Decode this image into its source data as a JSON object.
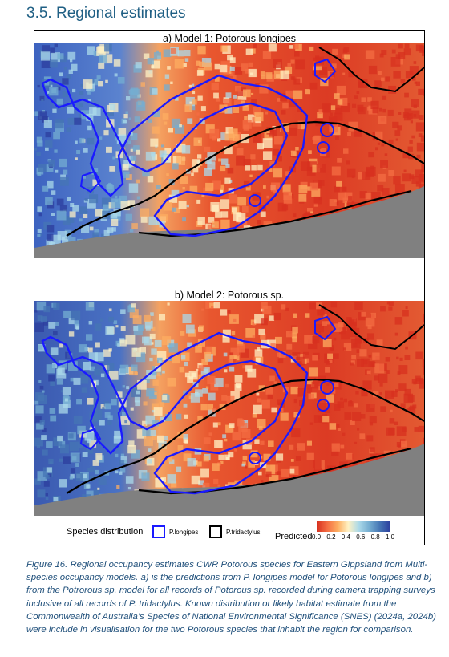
{
  "section": {
    "heading": "3.5.   Regional estimates"
  },
  "panels": [
    {
      "title": "a) Model 1: Potorous longipes"
    },
    {
      "title": "b) Model 2: Potorous sp."
    }
  ],
  "legend": {
    "species_title": "Species distribution",
    "longipes_label": "P.longipes",
    "tridactylus_label": "P.tridactylus",
    "predicted_title": "Predicted",
    "ticks": [
      "0.0",
      "0.2",
      "0.4",
      "0.6",
      "0.8",
      "1.0"
    ],
    "colors": {
      "longipes": "#1a1aff",
      "tridactylus": "#000000",
      "low": "#d7301f",
      "mid": "#fff2c4",
      "high": "#2c3e9e",
      "sea": "#808080"
    }
  },
  "caption": "Figure 16. Regional occupancy estimates CWR Potorous species for Eastern Gippsland from Multi-species occupancy models. a) is the predictions from P. longipes model for Potorous longipes and b) from the Potrorous sp. model for all records of Potorous sp. recorded during camera trapping surveys inclusive of all records of P. tridactylus. Known distribution or likely habitat estimate from the Commonwealth of Australia’s Species of National Environmental Significance (SNES) (2024a, 2024b) were include in visualisation for the two Potorous species that inhabit the region for comparison."
}
